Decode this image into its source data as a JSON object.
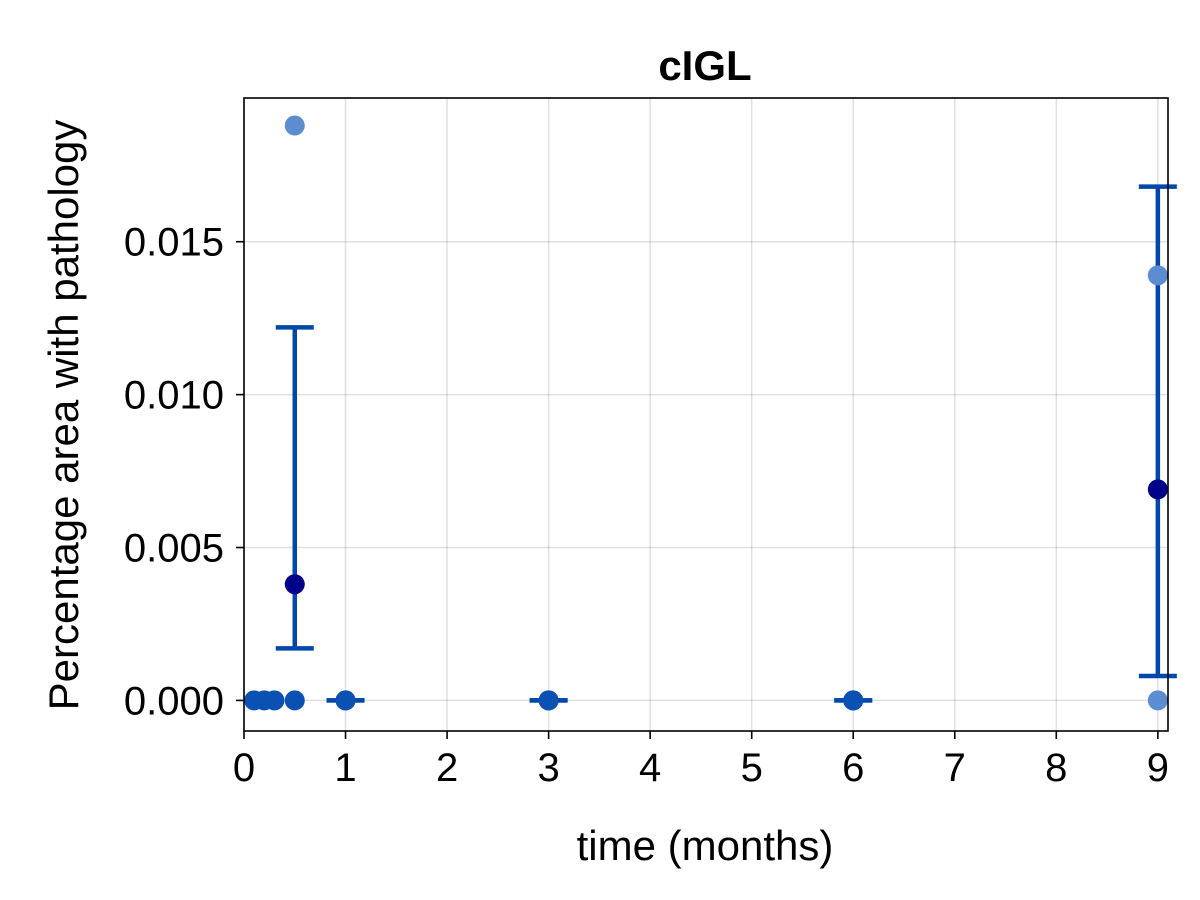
{
  "chart_data": {
    "type": "scatter",
    "title": "cIGL",
    "xlabel": "time (months)",
    "ylabel": "Percentage area with pathology",
    "xlim": [
      0,
      9.1
    ],
    "ylim": [
      -0.001,
      0.0197
    ],
    "x_ticks": [
      0,
      1,
      2,
      3,
      4,
      5,
      6,
      7,
      8,
      9
    ],
    "x_tick_labels": [
      "0",
      "1",
      "2",
      "3",
      "4",
      "5",
      "6",
      "7",
      "8",
      "9"
    ],
    "y_ticks": [
      0.0,
      0.005,
      0.01,
      0.015
    ],
    "y_tick_labels": [
      "0.000",
      "0.005",
      "0.010",
      "0.015"
    ],
    "grid": true,
    "colors": {
      "errorbar": "#0047ab",
      "mean_point": "#00008b",
      "individual_point": "#5b8dd0",
      "zero_point": "#0b50b3"
    },
    "series": [
      {
        "points": [
          {
            "x": 0.1,
            "y": 0.0
          },
          {
            "x": 0.2,
            "y": 0.0
          },
          {
            "x": 0.3,
            "y": 0.0
          },
          {
            "x": 0.5,
            "y": 0.0
          },
          {
            "x": 1.0,
            "y": 0.0
          },
          {
            "x": 3.0,
            "y": 0.0
          },
          {
            "x": 6.0,
            "y": 0.0
          }
        ]
      },
      {
        "points": [
          {
            "x": 0.5,
            "y": 0.0188
          },
          {
            "x": 9.0,
            "y": 0.0139
          },
          {
            "x": 9.0,
            "y": 0.0
          }
        ]
      },
      {
        "points": [
          {
            "x": 0.5,
            "y": 0.0038,
            "err_low": 0.0017,
            "err_high": 0.0122
          },
          {
            "x": 1.0,
            "y": 0.0,
            "err_low": 0.0,
            "err_high": 0.0
          },
          {
            "x": 3.0,
            "y": 0.0,
            "err_low": 0.0,
            "err_high": 0.0
          },
          {
            "x": 6.0,
            "y": 0.0,
            "err_low": 0.0,
            "err_high": 0.0
          },
          {
            "x": 9.0,
            "y": 0.0069,
            "err_low": 0.0008,
            "err_high": 0.0168
          }
        ]
      }
    ]
  }
}
